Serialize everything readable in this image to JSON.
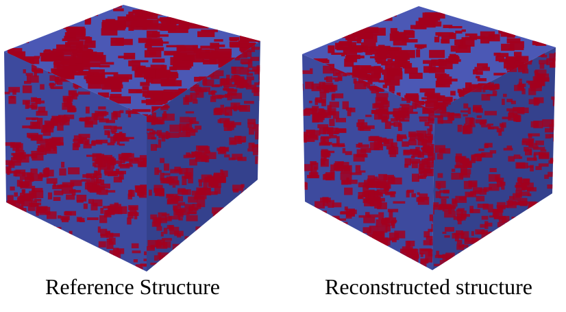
{
  "figure": {
    "left_caption": "Reference Structure",
    "right_caption": "Reconstructed structure"
  },
  "colors": {
    "phase_matrix": "#3e4ca3",
    "phase_inclusion": "#a3001e",
    "background": "#ffffff",
    "caption_text": "#000000"
  }
}
